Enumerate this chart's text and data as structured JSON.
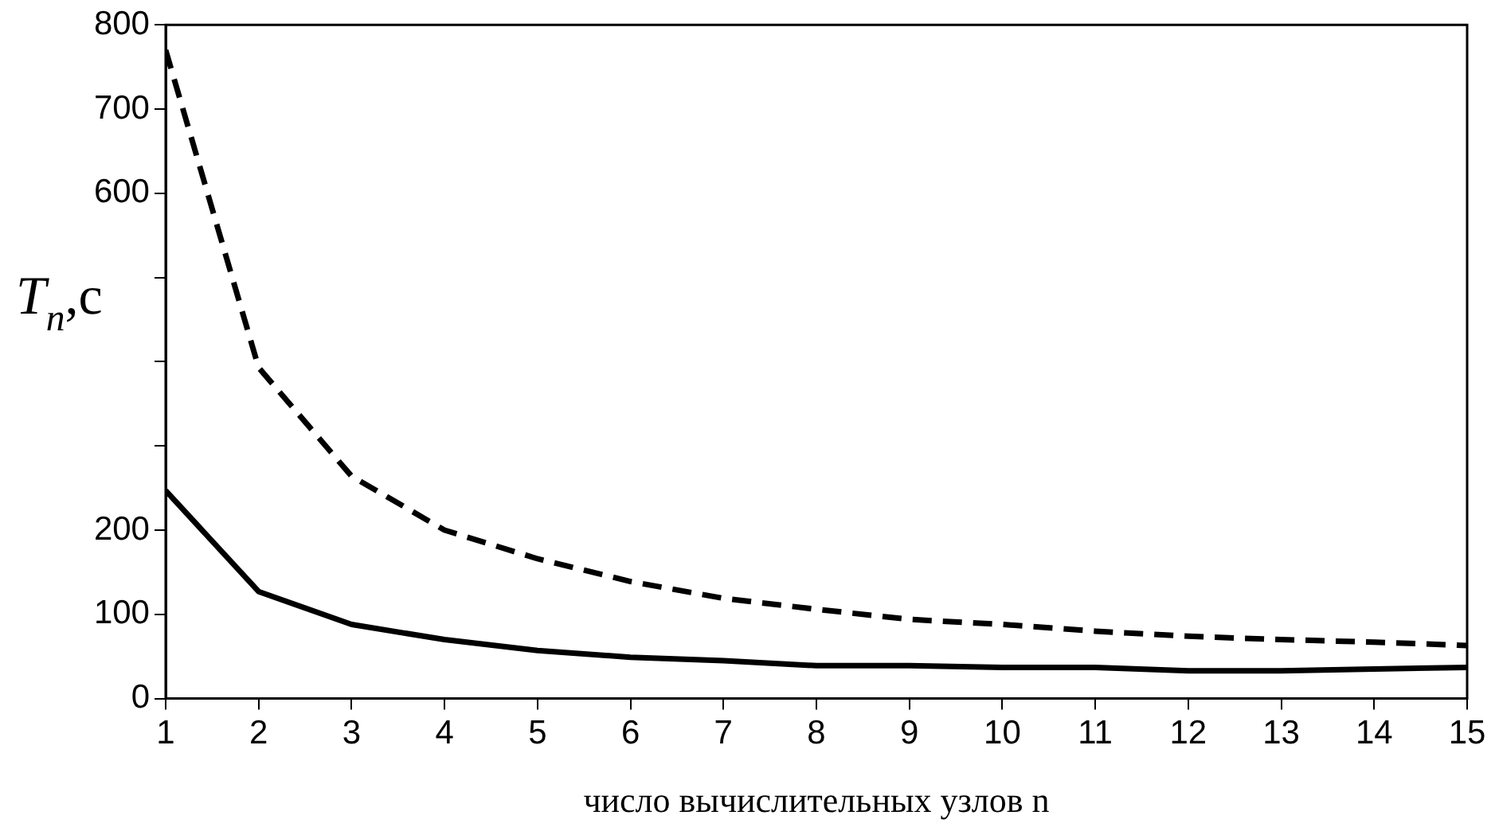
{
  "chart_data": {
    "type": "line",
    "xlabel": "число вычислительных узлов n",
    "ylabel": "T$_{n}$,c",
    "x": [
      1,
      2,
      3,
      4,
      5,
      6,
      7,
      8,
      9,
      10,
      11,
      12,
      13,
      14,
      15
    ],
    "series": [
      {
        "color": "#000000",
        "line_style": "dashed",
        "values": [
          770,
          393,
          264,
          200,
          166,
          139,
          119,
          106,
          94,
          88,
          80,
          74,
          70,
          67,
          63
        ]
      },
      {
        "color": "#000000",
        "line_style": "solid",
        "values": [
          247,
          127,
          88,
          70,
          57,
          49,
          45,
          39,
          39,
          37,
          37,
          33,
          33,
          35,
          37
        ]
      }
    ],
    "xlim": [
      1,
      15
    ],
    "xticks": [
      1,
      2,
      3,
      4,
      5,
      6,
      7,
      8,
      9,
      10,
      11,
      12,
      13,
      14,
      15
    ],
    "ylim": [
      0,
      800
    ],
    "yticks": [
      0,
      100,
      200,
      {
        "value": 300,
        "label": null
      },
      {
        "value": 400,
        "label": null
      },
      {
        "value": 500,
        "label": null
      },
      600,
      700,
      800
    ],
    "grid": false,
    "legend": false,
    "marker": "none"
  }
}
